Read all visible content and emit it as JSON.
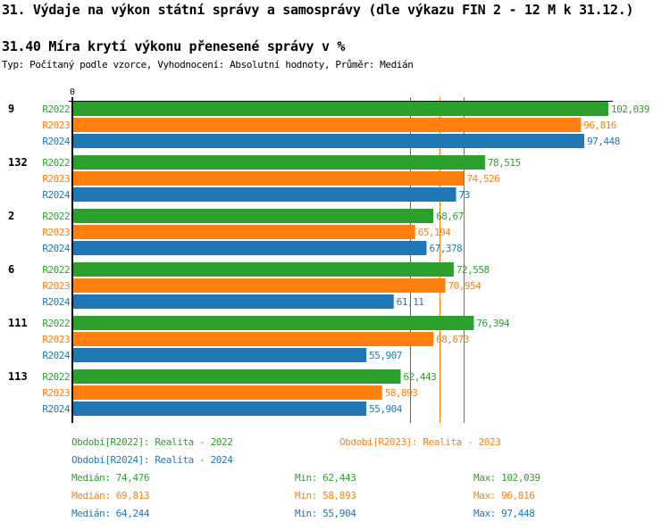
{
  "header": {
    "title": "31. Výdaje na výkon státní správy a samosprávy (dle výkazu FIN 2 - 12 M k 31.12.)",
    "subtitle": "31.40 Míra krytí výkonu přenesené správy v %",
    "description": "Typ: Počítaný podle vzorce, Vyhodnocení: Absolutní hodnoty, Průměr: Medián"
  },
  "colors": {
    "R2022": "#2ca02c",
    "R2023": "#ff7f0e",
    "R2024": "#1f77b4"
  },
  "chart_data": {
    "type": "bar",
    "orientation": "horizontal",
    "title": "31.40 Míra krytí výkonu přenesené správy v %",
    "xlabel": "",
    "ylabel": "",
    "x_tick_labels": [
      "0"
    ],
    "xlim": [
      0,
      103
    ],
    "categories": [
      "9",
      "132",
      "2",
      "6",
      "111",
      "113"
    ],
    "series": [
      {
        "name": "R2022",
        "values": [
          102.039,
          78.515,
          68.67,
          72.558,
          76.394,
          62.443
        ],
        "labels": [
          "102,039",
          "78,515",
          "68,67",
          "72,558",
          "76,394",
          "62,443"
        ]
      },
      {
        "name": "R2023",
        "values": [
          96.816,
          74.526,
          65.194,
          70.954,
          68.673,
          58.893
        ],
        "labels": [
          "96,816",
          "74,526",
          "65,194",
          "70,954",
          "68,673",
          "58,893"
        ]
      },
      {
        "name": "R2024",
        "values": [
          97.448,
          73,
          67.378,
          61.11,
          55.907,
          55.904
        ],
        "labels": [
          "97,448",
          "73",
          "67,378",
          "61,11",
          "55,907",
          "55,904"
        ]
      }
    ],
    "reference_lines": [
      {
        "series": "R2022",
        "type": "median",
        "value": 74.476
      },
      {
        "series": "R2023",
        "type": "median",
        "value": 69.813
      },
      {
        "series": "R2024",
        "type": "median",
        "value": 64.244
      }
    ],
    "legend": [
      {
        "series": "R2022",
        "text": "Období[R2022]: Realita - 2022"
      },
      {
        "series": "R2023",
        "text": "Období[R2023]: Realita - 2023"
      },
      {
        "series": "R2024",
        "text": "Období[R2024]: Realita - 2024"
      }
    ],
    "stats": [
      {
        "series": "R2022",
        "median": "Medián: 74,476",
        "min": "Min: 62,443",
        "max": "Max: 102,039"
      },
      {
        "series": "R2023",
        "median": "Medián: 69,813",
        "min": "Min: 58,893",
        "max": "Max: 96,816"
      },
      {
        "series": "R2024",
        "median": "Medián: 64,244",
        "min": "Min: 55,904",
        "max": "Max: 97,448"
      }
    ],
    "legend_position": "bottom"
  }
}
